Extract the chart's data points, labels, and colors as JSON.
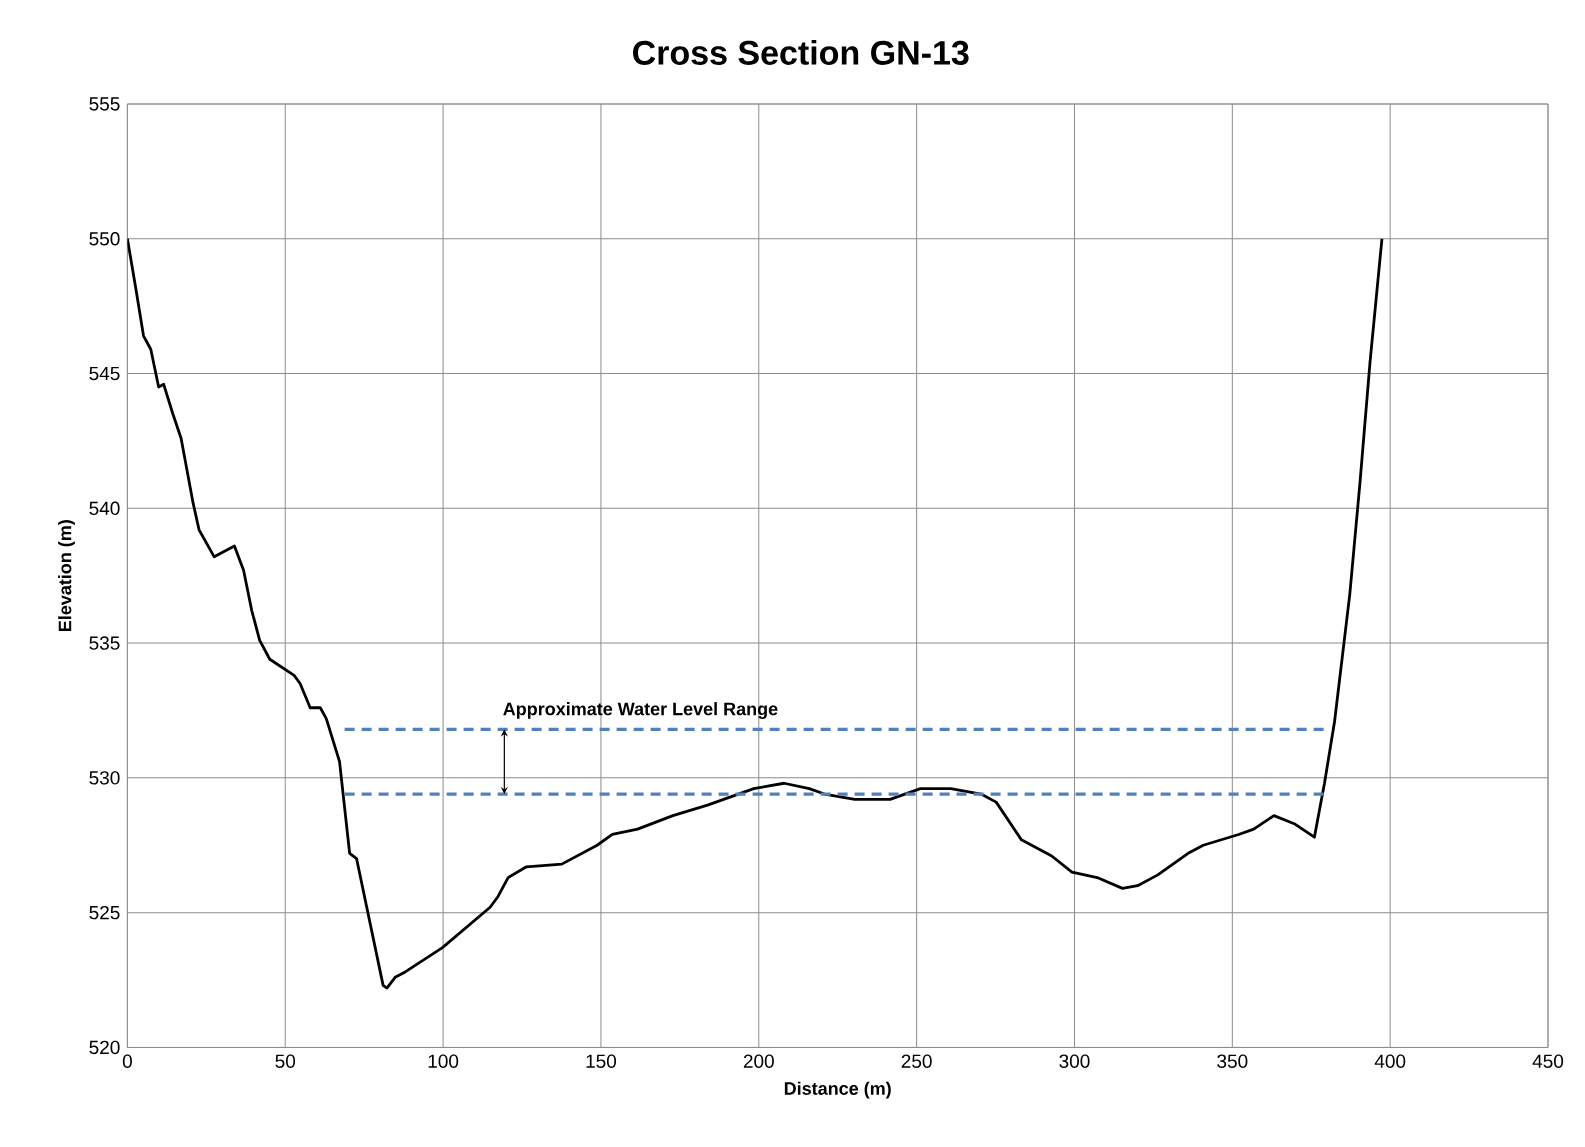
{
  "chart_data": {
    "type": "line",
    "title": "Cross Section GN-13",
    "xlabel": "Distance (m)",
    "ylabel": "Elevation (m)",
    "xlim": [
      0,
      450
    ],
    "ylim": [
      520,
      555
    ],
    "xticks": [
      0,
      50,
      100,
      150,
      200,
      250,
      300,
      350,
      400,
      450
    ],
    "yticks": [
      520,
      525,
      530,
      535,
      540,
      545,
      550,
      555
    ],
    "grid": true,
    "annotations": [
      {
        "text": "Approximate Water Level Range",
        "x": 119.4,
        "y": 531.8
      }
    ],
    "series": [
      {
        "color": "#000000",
        "line_style": "solid",
        "x": [
          0,
          2.6,
          5.1,
          7.4,
          9.9,
          11.5,
          14.4,
          17,
          18.9,
          20.8,
          22.7,
          27.5,
          33.9,
          36.8,
          39.4,
          41.9,
          45.1,
          52.8,
          54.7,
          57.9,
          61.1,
          63,
          67.2,
          70.4,
          72.6,
          81,
          82.2,
          84.8,
          88,
          99.8,
          114.9,
          117.4,
          120.6,
          126.4,
          137.6,
          148.8,
          153.6,
          161.6,
          172.8,
          184,
          198.4,
          208,
          216,
          220.8,
          230.4,
          241.6,
          251.2,
          260.8,
          270.4,
          275.2,
          283.2,
          292.8,
          299.2,
          307.2,
          315.2,
          320,
          326.4,
          336,
          340.8,
          352,
          356.8,
          363.2,
          369.6,
          376,
          379.2,
          382.4,
          387.2,
          390.4,
          393.6,
          397.4
        ],
        "values": [
          550,
          548.2,
          546.4,
          545.9,
          544.5,
          544.6,
          543.5,
          542.6,
          541.4,
          540.2,
          539.2,
          538.2,
          538.6,
          537.7,
          536.2,
          535.1,
          534.4,
          533.8,
          533.5,
          532.6,
          532.6,
          532.2,
          530.6,
          527.2,
          527,
          522.3,
          522.2,
          522.6,
          522.8,
          523.7,
          525.2,
          525.6,
          526.3,
          526.7,
          526.8,
          527.5,
          527.9,
          528.1,
          528.6,
          529,
          529.6,
          529.8,
          529.6,
          529.4,
          529.2,
          529.2,
          529.6,
          529.6,
          529.4,
          529.1,
          527.7,
          527.1,
          526.5,
          526.3,
          525.9,
          526,
          526.4,
          527.2,
          527.5,
          527.9,
          528.1,
          528.6,
          528.3,
          527.8,
          529.8,
          532.1,
          536.8,
          540.9,
          545.4,
          550
        ]
      },
      {
        "color": "#4f81bd",
        "line_style": "dashed",
        "x": [
          68.8,
          379.2
        ],
        "values": [
          531.8,
          531.8
        ]
      },
      {
        "color": "#4f81bd",
        "line_style": "dashed",
        "x": [
          68.8,
          379.2
        ],
        "values": [
          529.4,
          529.4
        ]
      }
    ]
  }
}
